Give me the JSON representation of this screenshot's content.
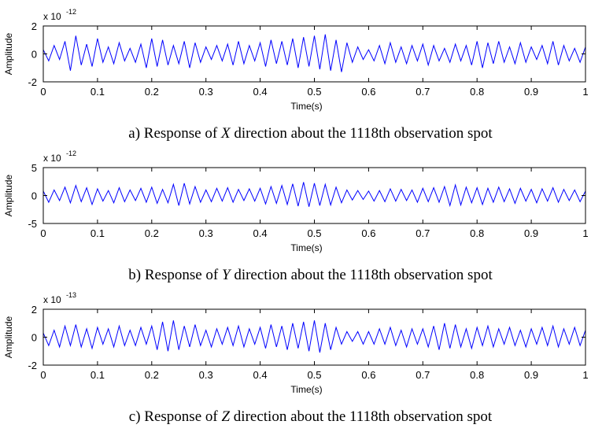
{
  "chart_data": [
    {
      "type": "line",
      "caption": {
        "prefix": "a) Response of ",
        "variable": "X",
        "suffix": " direction about the 1118th observation spot"
      },
      "xlabel": "Time(s)",
      "ylabel": "Amplitude",
      "y_multiplier": "x 10",
      "y_exponent": "-12",
      "color": "#0000ff",
      "xlim": [
        0,
        1
      ],
      "ylim": [
        -2,
        2
      ],
      "xticks": [
        0,
        0.1,
        0.2,
        0.3,
        0.4,
        0.5,
        0.6,
        0.7,
        0.8,
        0.9,
        1
      ],
      "yticks": [
        -2,
        0,
        2
      ],
      "x": [
        0,
        0.01,
        0.02,
        0.03,
        0.04,
        0.05,
        0.06,
        0.07,
        0.08,
        0.09,
        0.1,
        0.11,
        0.12,
        0.13,
        0.14,
        0.15,
        0.16,
        0.17,
        0.18,
        0.19,
        0.2,
        0.21,
        0.22,
        0.23,
        0.24,
        0.25,
        0.26,
        0.27,
        0.28,
        0.29,
        0.3,
        0.31,
        0.32,
        0.33,
        0.34,
        0.35,
        0.36,
        0.37,
        0.38,
        0.39,
        0.4,
        0.41,
        0.42,
        0.43,
        0.44,
        0.45,
        0.46,
        0.47,
        0.48,
        0.49,
        0.5,
        0.51,
        0.52,
        0.53,
        0.54,
        0.55,
        0.56,
        0.57,
        0.58,
        0.59,
        0.6,
        0.61,
        0.62,
        0.63,
        0.64,
        0.65,
        0.66,
        0.67,
        0.68,
        0.69,
        0.7,
        0.71,
        0.72,
        0.73,
        0.74,
        0.75,
        0.76,
        0.77,
        0.78,
        0.79,
        0.8,
        0.81,
        0.82,
        0.83,
        0.84,
        0.85,
        0.86,
        0.87,
        0.88,
        0.89,
        0.9,
        0.91,
        0.92,
        0.93,
        0.94,
        0.95,
        0.96,
        0.97,
        0.98,
        0.99,
        1
      ],
      "values": [
        0.3,
        -0.5,
        0.6,
        -0.4,
        0.9,
        -1.2,
        1.3,
        -0.8,
        0.7,
        -0.9,
        1.1,
        -0.6,
        0.5,
        -0.7,
        0.8,
        -0.5,
        0.4,
        -0.6,
        0.7,
        -1.0,
        1.1,
        -0.9,
        1.0,
        -0.8,
        0.6,
        -0.7,
        0.9,
        -1.0,
        0.8,
        -0.6,
        0.5,
        -0.4,
        0.6,
        -0.5,
        0.7,
        -0.8,
        0.9,
        -0.7,
        0.6,
        -0.5,
        0.8,
        -0.9,
        1.0,
        -0.7,
        0.9,
        -0.8,
        1.1,
        -1.0,
        1.2,
        -0.9,
        1.3,
        -1.1,
        1.4,
        -1.2,
        1.0,
        -1.3,
        0.8,
        -0.6,
        0.5,
        -0.4,
        0.3,
        -0.5,
        0.6,
        -0.7,
        0.8,
        -0.6,
        0.5,
        -0.7,
        0.6,
        -0.5,
        0.7,
        -0.8,
        0.6,
        -0.5,
        0.4,
        -0.6,
        0.7,
        -0.5,
        0.6,
        -0.8,
        0.9,
        -1.0,
        0.8,
        -0.7,
        0.9,
        -0.6,
        0.5,
        -0.7,
        0.8,
        -0.6,
        0.5,
        -0.4,
        0.6,
        -0.7,
        0.9,
        -0.8,
        0.6,
        -0.5,
        0.4,
        -0.6,
        0.5
      ]
    },
    {
      "type": "line",
      "caption": {
        "prefix": "b) Response of ",
        "variable": "Y",
        "suffix": " direction about the 1118th observation spot"
      },
      "xlabel": "Time(s)",
      "ylabel": "Amplitude",
      "y_multiplier": "x 10",
      "y_exponent": "-12",
      "color": "#0000ff",
      "xlim": [
        0,
        1
      ],
      "ylim": [
        -5,
        5
      ],
      "xticks": [
        0,
        0.1,
        0.2,
        0.3,
        0.4,
        0.5,
        0.6,
        0.7,
        0.8,
        0.9,
        1
      ],
      "yticks": [
        -5,
        0,
        5
      ],
      "x": [
        0,
        0.01,
        0.02,
        0.03,
        0.04,
        0.05,
        0.06,
        0.07,
        0.08,
        0.09,
        0.1,
        0.11,
        0.12,
        0.13,
        0.14,
        0.15,
        0.16,
        0.17,
        0.18,
        0.19,
        0.2,
        0.21,
        0.22,
        0.23,
        0.24,
        0.25,
        0.26,
        0.27,
        0.28,
        0.29,
        0.3,
        0.31,
        0.32,
        0.33,
        0.34,
        0.35,
        0.36,
        0.37,
        0.38,
        0.39,
        0.4,
        0.41,
        0.42,
        0.43,
        0.44,
        0.45,
        0.46,
        0.47,
        0.48,
        0.49,
        0.5,
        0.51,
        0.52,
        0.53,
        0.54,
        0.55,
        0.56,
        0.57,
        0.58,
        0.59,
        0.6,
        0.61,
        0.62,
        0.63,
        0.64,
        0.65,
        0.66,
        0.67,
        0.68,
        0.69,
        0.7,
        0.71,
        0.72,
        0.73,
        0.74,
        0.75,
        0.76,
        0.77,
        0.78,
        0.79,
        0.8,
        0.81,
        0.82,
        0.83,
        0.84,
        0.85,
        0.86,
        0.87,
        0.88,
        0.89,
        0.9,
        0.91,
        0.92,
        0.93,
        0.94,
        0.95,
        0.96,
        0.97,
        0.98,
        0.99,
        1
      ],
      "values": [
        0.8,
        -1.2,
        1.0,
        -0.9,
        1.5,
        -1.3,
        1.8,
        -1.1,
        1.4,
        -1.6,
        1.2,
        -1.0,
        0.9,
        -1.3,
        1.4,
        -1.1,
        1.0,
        -0.9,
        1.3,
        -1.2,
        1.5,
        -1.4,
        1.1,
        -1.3,
        2.0,
        -1.8,
        2.2,
        -1.5,
        1.6,
        -1.2,
        1.0,
        -1.1,
        1.3,
        -1.0,
        1.4,
        -1.2,
        1.1,
        -0.9,
        1.2,
        -1.0,
        1.3,
        -1.5,
        1.6,
        -1.4,
        1.8,
        -1.6,
        2.1,
        -1.9,
        2.4,
        -2.0,
        2.2,
        -1.8,
        2.0,
        -1.7,
        1.5,
        -1.3,
        1.0,
        -0.8,
        0.9,
        -0.7,
        0.8,
        -1.0,
        0.9,
        -1.1,
        1.2,
        -1.0,
        1.1,
        -0.9,
        1.0,
        -1.2,
        1.3,
        -1.1,
        1.4,
        -1.2,
        1.6,
        -1.8,
        1.9,
        -1.7,
        1.5,
        -1.3,
        1.4,
        -1.6,
        1.3,
        -1.2,
        1.5,
        -1.1,
        1.2,
        -1.4,
        1.3,
        -1.0,
        1.1,
        -1.3,
        1.2,
        -1.0,
        1.4,
        -1.2,
        1.1,
        -0.9,
        1.0,
        -1.1,
        0.8
      ]
    },
    {
      "type": "line",
      "caption": {
        "prefix": "c) Response of ",
        "variable": "Z",
        "suffix": " direction about the 1118th observation spot"
      },
      "xlabel": "Time(s)",
      "ylabel": "Amplitude",
      "y_multiplier": "x 10",
      "y_exponent": "-13",
      "color": "#0000ff",
      "xlim": [
        0,
        1
      ],
      "ylim": [
        -2,
        2
      ],
      "xticks": [
        0,
        0.1,
        0.2,
        0.3,
        0.4,
        0.5,
        0.6,
        0.7,
        0.8,
        0.9,
        1
      ],
      "yticks": [
        -2,
        0,
        2
      ],
      "x": [
        0,
        0.01,
        0.02,
        0.03,
        0.04,
        0.05,
        0.06,
        0.07,
        0.08,
        0.09,
        0.1,
        0.11,
        0.12,
        0.13,
        0.14,
        0.15,
        0.16,
        0.17,
        0.18,
        0.19,
        0.2,
        0.21,
        0.22,
        0.23,
        0.24,
        0.25,
        0.26,
        0.27,
        0.28,
        0.29,
        0.3,
        0.31,
        0.32,
        0.33,
        0.34,
        0.35,
        0.36,
        0.37,
        0.38,
        0.39,
        0.4,
        0.41,
        0.42,
        0.43,
        0.44,
        0.45,
        0.46,
        0.47,
        0.48,
        0.49,
        0.5,
        0.51,
        0.52,
        0.53,
        0.54,
        0.55,
        0.56,
        0.57,
        0.58,
        0.59,
        0.6,
        0.61,
        0.62,
        0.63,
        0.64,
        0.65,
        0.66,
        0.67,
        0.68,
        0.69,
        0.7,
        0.71,
        0.72,
        0.73,
        0.74,
        0.75,
        0.76,
        0.77,
        0.78,
        0.79,
        0.8,
        0.81,
        0.82,
        0.83,
        0.84,
        0.85,
        0.86,
        0.87,
        0.88,
        0.89,
        0.9,
        0.91,
        0.92,
        0.93,
        0.94,
        0.95,
        0.96,
        0.97,
        0.98,
        0.99,
        1
      ],
      "values": [
        0.3,
        -0.6,
        0.5,
        -0.7,
        0.8,
        -0.6,
        0.9,
        -0.7,
        0.6,
        -0.8,
        0.7,
        -0.5,
        0.6,
        -0.7,
        0.8,
        -0.6,
        0.5,
        -0.6,
        0.7,
        -0.5,
        0.8,
        -0.9,
        1.1,
        -1.0,
        1.2,
        -0.9,
        0.8,
        -0.7,
        0.9,
        -0.6,
        0.5,
        -0.7,
        0.6,
        -0.5,
        0.7,
        -0.6,
        0.8,
        -0.7,
        0.6,
        -0.5,
        0.7,
        -0.8,
        0.9,
        -0.7,
        0.8,
        -0.9,
        1.0,
        -0.8,
        1.1,
        -1.0,
        1.2,
        -1.1,
        1.0,
        -0.9,
        0.7,
        -0.5,
        0.4,
        -0.3,
        0.4,
        -0.5,
        0.4,
        -0.5,
        0.6,
        -0.5,
        0.7,
        -0.6,
        0.5,
        -0.7,
        0.6,
        -0.5,
        0.6,
        -0.7,
        0.8,
        -0.9,
        1.0,
        -0.8,
        0.9,
        -0.7,
        0.6,
        -0.8,
        0.7,
        -0.6,
        0.8,
        -0.7,
        0.6,
        -0.5,
        0.7,
        -0.6,
        0.5,
        -0.7,
        0.6,
        -0.5,
        0.7,
        -0.6,
        0.8,
        -0.7,
        0.6,
        -0.5,
        0.7,
        -0.6,
        0.5
      ]
    }
  ]
}
